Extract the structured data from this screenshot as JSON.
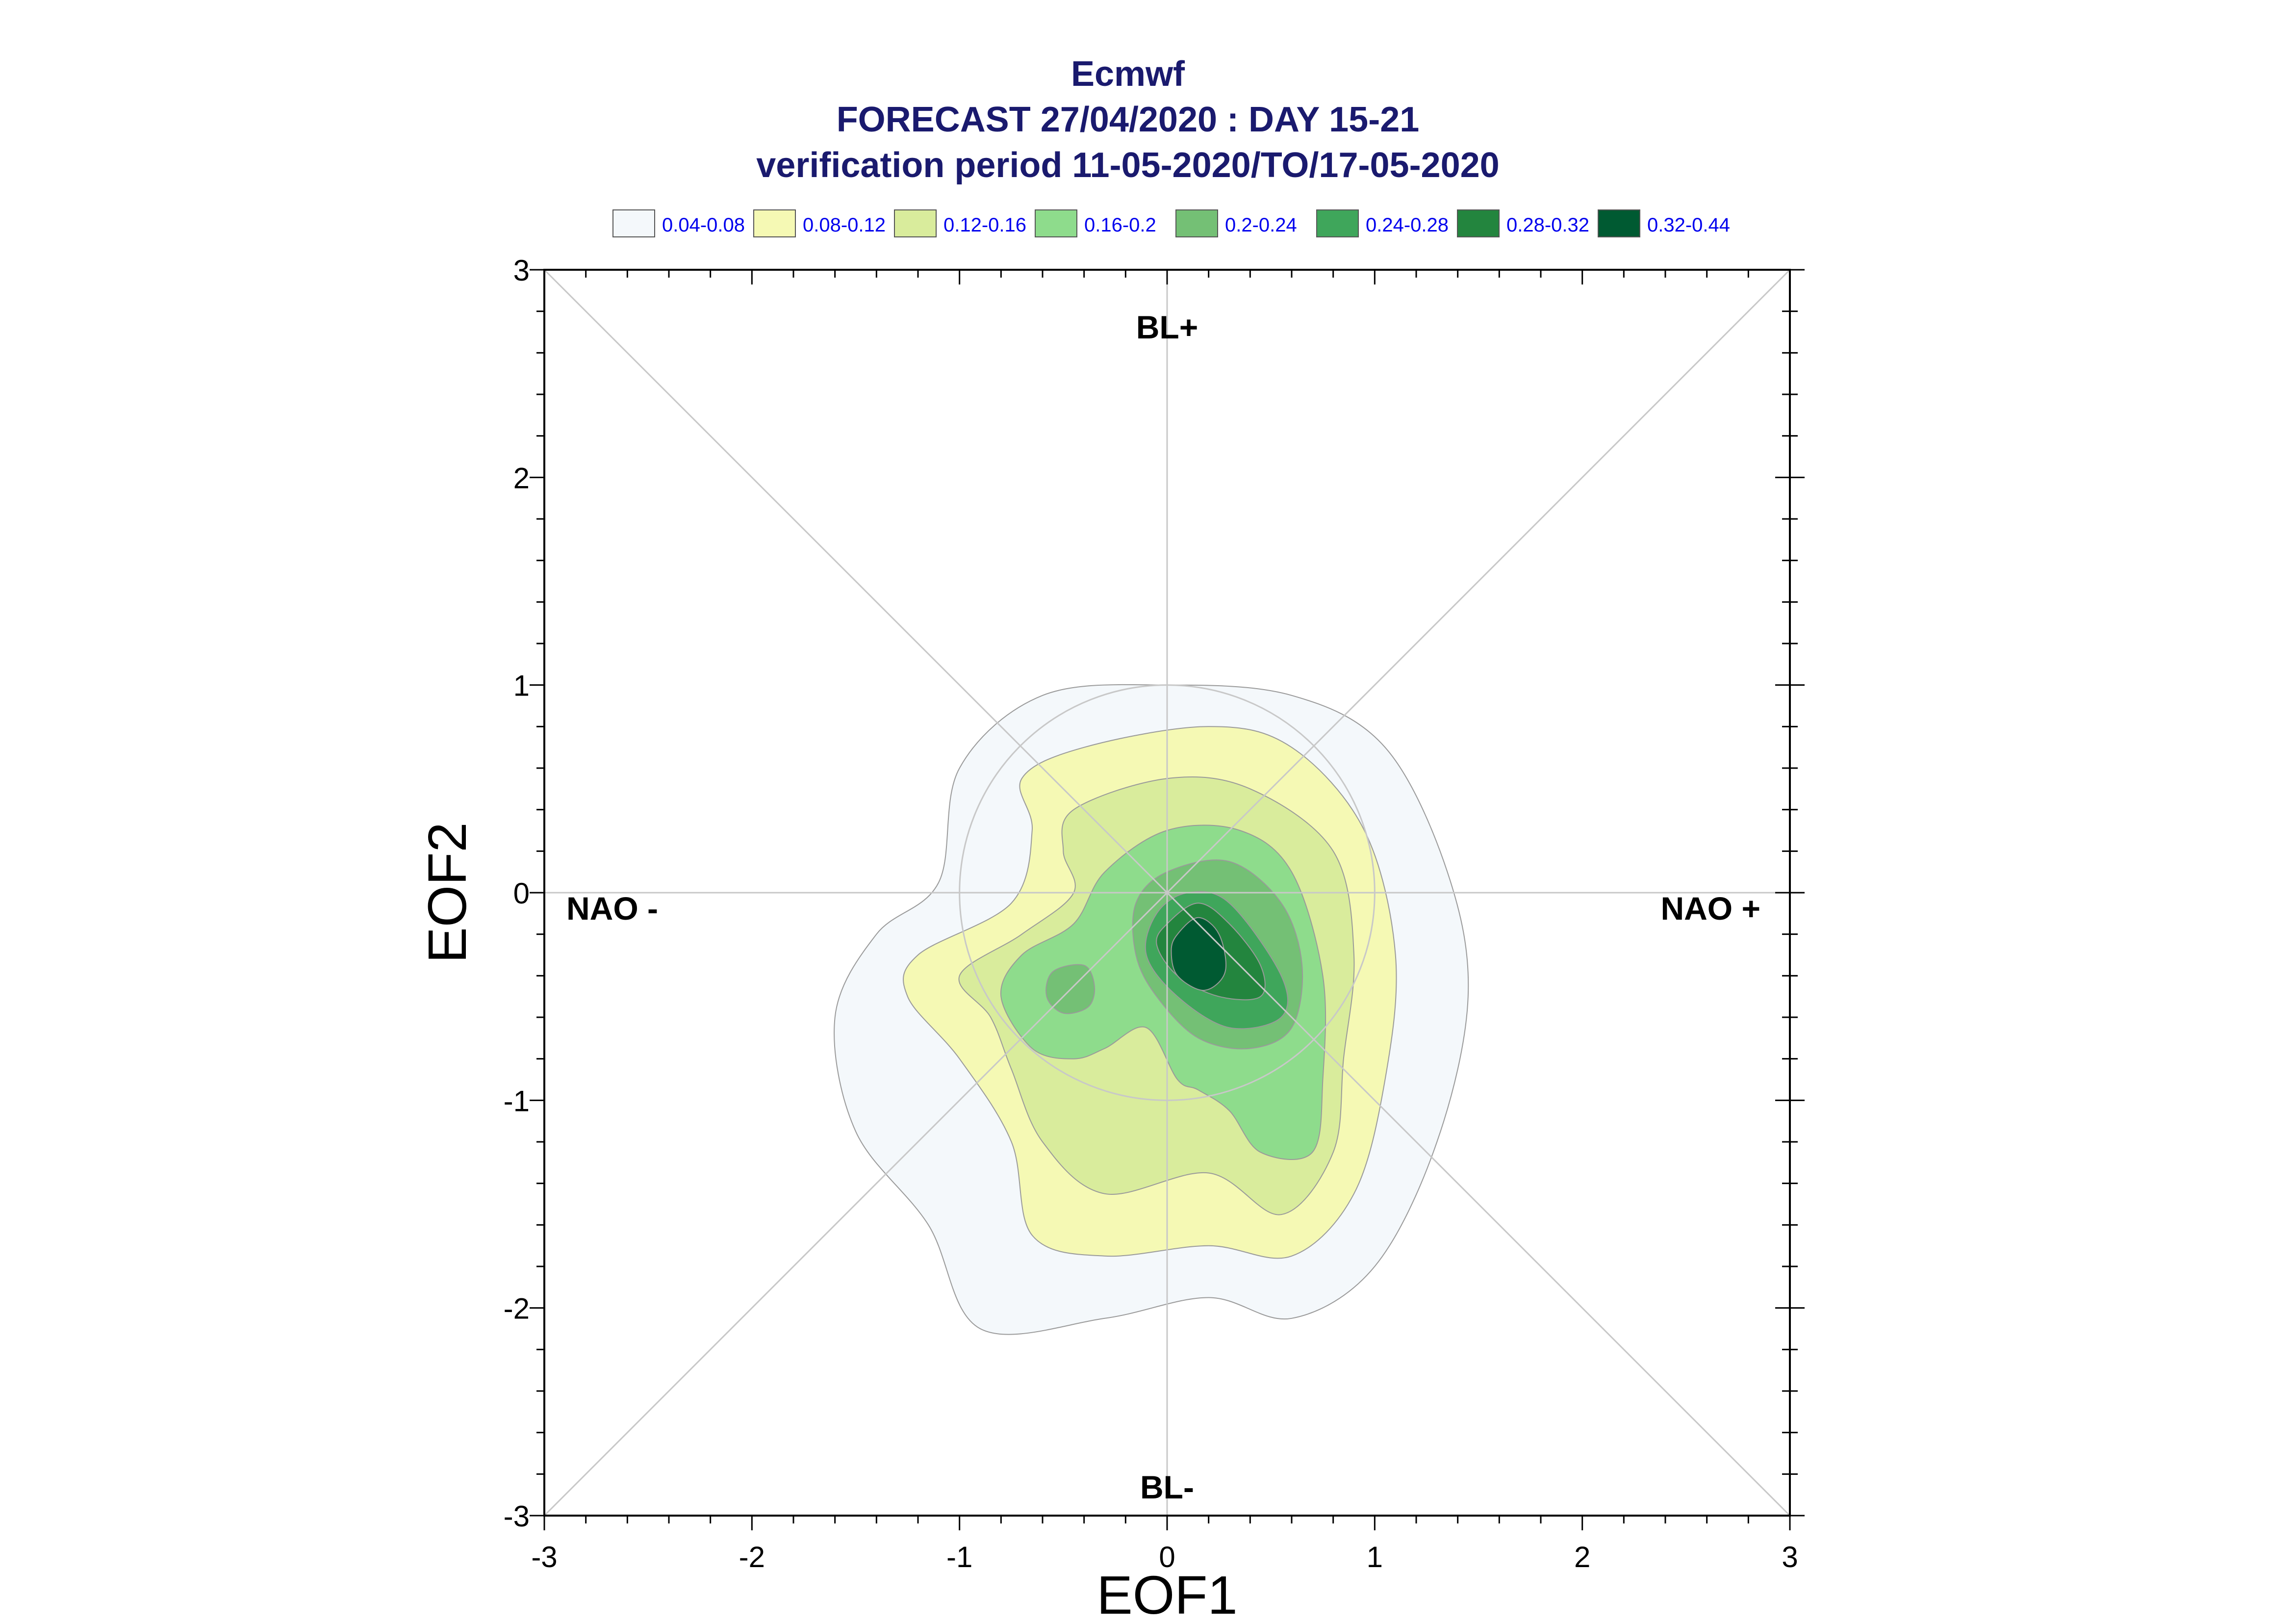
{
  "chart_data": {
    "type": "contour",
    "title_lines": [
      "Ecmwf",
      "FORECAST 27/04/2020 : DAY 15-21",
      "verification period 11-05-2020/TO/17-05-2020"
    ],
    "xlabel": "EOF1",
    "ylabel": "EOF2",
    "xlim": [
      -3,
      3
    ],
    "ylim": [
      -3,
      3
    ],
    "xticks": [
      "-3",
      "-2",
      "-1",
      "0",
      "1",
      "2",
      "3"
    ],
    "yticks": [
      "-3",
      "-2",
      "-1",
      "0",
      "1",
      "2",
      "3"
    ],
    "regime_labels": {
      "top": "BL+",
      "bottom": "BL-",
      "left": "NAO -",
      "right": "NAO +"
    },
    "reference_circle_radius": 1.0,
    "legend": [
      {
        "label": "0.04-0.08",
        "color": "#f4f8fb"
      },
      {
        "label": "0.08-0.12",
        "color": "#f5f9b4"
      },
      {
        "label": "0.12-0.16",
        "color": "#d9ec9c"
      },
      {
        "label": "0.16-0.2",
        "color": "#8edc8c"
      },
      {
        "label": "0.2-0.24",
        "color": "#74c075"
      },
      {
        "label": "0.24-0.28",
        "color": "#3fa65b"
      },
      {
        "label": "0.28-0.32",
        "color": "#23853e"
      },
      {
        "label": "0.32-0.44",
        "color": "#005a32"
      }
    ],
    "density_levels": [
      {
        "range": "0.04-0.08",
        "outline": [
          [
            -1.0,
            0.6
          ],
          [
            -0.6,
            0.95
          ],
          [
            0.0,
            1.0
          ],
          [
            0.6,
            0.95
          ],
          [
            1.05,
            0.7
          ],
          [
            1.35,
            0.1
          ],
          [
            1.45,
            -0.5
          ],
          [
            1.3,
            -1.2
          ],
          [
            1.0,
            -1.8
          ],
          [
            0.6,
            -2.05
          ],
          [
            0.2,
            -1.95
          ],
          [
            -0.3,
            -2.05
          ],
          [
            -0.9,
            -2.1
          ],
          [
            -1.15,
            -1.6
          ],
          [
            -1.5,
            -1.15
          ],
          [
            -1.6,
            -0.6
          ],
          [
            -1.4,
            -0.2
          ],
          [
            -1.1,
            0.05
          ]
        ]
      },
      {
        "range": "0.08-0.12",
        "outline": [
          [
            -0.7,
            0.55
          ],
          [
            -0.4,
            0.7
          ],
          [
            0.2,
            0.8
          ],
          [
            0.6,
            0.7
          ],
          [
            0.95,
            0.3
          ],
          [
            1.1,
            -0.3
          ],
          [
            1.05,
            -0.9
          ],
          [
            0.9,
            -1.45
          ],
          [
            0.6,
            -1.75
          ],
          [
            0.2,
            -1.7
          ],
          [
            -0.3,
            -1.75
          ],
          [
            -0.65,
            -1.65
          ],
          [
            -0.75,
            -1.2
          ],
          [
            -1.0,
            -0.8
          ],
          [
            -1.25,
            -0.5
          ],
          [
            -1.2,
            -0.3
          ],
          [
            -0.75,
            -0.05
          ],
          [
            -0.65,
            0.3
          ]
        ]
      },
      {
        "range": "0.12-0.16",
        "outline": [
          [
            -0.45,
            0.4
          ],
          [
            0.0,
            0.55
          ],
          [
            0.4,
            0.5
          ],
          [
            0.8,
            0.2
          ],
          [
            0.9,
            -0.3
          ],
          [
            0.85,
            -0.8
          ],
          [
            0.8,
            -1.25
          ],
          [
            0.55,
            -1.55
          ],
          [
            0.2,
            -1.35
          ],
          [
            -0.3,
            -1.45
          ],
          [
            -0.6,
            -1.2
          ],
          [
            -0.75,
            -0.85
          ],
          [
            -0.85,
            -0.6
          ],
          [
            -1.0,
            -0.4
          ],
          [
            -0.7,
            -0.2
          ],
          [
            -0.45,
            0.0
          ],
          [
            -0.5,
            0.2
          ]
        ]
      },
      {
        "range": "0.16-0.2",
        "outline": [
          [
            -0.3,
            0.1
          ],
          [
            0.0,
            0.3
          ],
          [
            0.35,
            0.3
          ],
          [
            0.6,
            0.1
          ],
          [
            0.75,
            -0.4
          ],
          [
            0.75,
            -0.9
          ],
          [
            0.7,
            -1.25
          ],
          [
            0.45,
            -1.25
          ],
          [
            0.3,
            -1.05
          ],
          [
            0.15,
            -0.95
          ],
          [
            0.05,
            -0.9
          ],
          [
            -0.1,
            -0.65
          ],
          [
            -0.3,
            -0.75
          ],
          [
            -0.45,
            -0.8
          ],
          [
            -0.65,
            -0.75
          ],
          [
            -0.8,
            -0.5
          ],
          [
            -0.7,
            -0.3
          ],
          [
            -0.45,
            -0.15
          ]
        ]
      },
      {
        "range": "0.2-0.24",
        "outline": [
          [
            -0.15,
            -0.05
          ],
          [
            0.0,
            0.1
          ],
          [
            0.3,
            0.15
          ],
          [
            0.55,
            -0.05
          ],
          [
            0.65,
            -0.35
          ],
          [
            0.6,
            -0.65
          ],
          [
            0.4,
            -0.75
          ],
          [
            0.15,
            -0.7
          ],
          [
            -0.05,
            -0.5
          ],
          [
            -0.15,
            -0.3
          ]
        ]
      },
      {
        "range": "0.2-0.24",
        "outline": [
          [
            -0.4,
            -0.35
          ],
          [
            -0.35,
            -0.45
          ],
          [
            -0.38,
            -0.55
          ],
          [
            -0.5,
            -0.58
          ],
          [
            -0.58,
            -0.5
          ],
          [
            -0.55,
            -0.38
          ]
        ]
      },
      {
        "range": "0.24-0.28",
        "outline": [
          [
            -0.05,
            -0.1
          ],
          [
            0.1,
            0.0
          ],
          [
            0.3,
            -0.05
          ],
          [
            0.55,
            -0.4
          ],
          [
            0.55,
            -0.6
          ],
          [
            0.3,
            -0.65
          ],
          [
            0.05,
            -0.5
          ],
          [
            -0.1,
            -0.3
          ]
        ]
      },
      {
        "range": "0.28-0.32",
        "outline": [
          [
            0.0,
            -0.15
          ],
          [
            0.15,
            -0.05
          ],
          [
            0.3,
            -0.15
          ],
          [
            0.45,
            -0.35
          ],
          [
            0.45,
            -0.5
          ],
          [
            0.25,
            -0.5
          ],
          [
            0.05,
            -0.4
          ],
          [
            -0.05,
            -0.25
          ]
        ]
      },
      {
        "range": "0.32-0.44",
        "outline": [
          [
            0.05,
            -0.2
          ],
          [
            0.15,
            -0.12
          ],
          [
            0.25,
            -0.2
          ],
          [
            0.28,
            -0.38
          ],
          [
            0.18,
            -0.47
          ],
          [
            0.05,
            -0.4
          ],
          [
            0.02,
            -0.28
          ]
        ]
      }
    ]
  }
}
